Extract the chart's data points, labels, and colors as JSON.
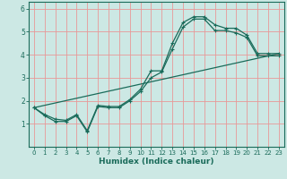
{
  "title": "",
  "xlabel": "Humidex (Indice chaleur)",
  "bg_color": "#cce8e4",
  "grid_color": "#e89898",
  "line_color": "#1a6b5a",
  "xlim": [
    -0.5,
    23.5
  ],
  "ylim": [
    0,
    6.3
  ],
  "xticks": [
    0,
    1,
    2,
    3,
    4,
    5,
    6,
    7,
    8,
    9,
    10,
    11,
    12,
    13,
    14,
    15,
    16,
    17,
    18,
    19,
    20,
    21,
    22,
    23
  ],
  "yticks": [
    1,
    2,
    3,
    4,
    5,
    6
  ],
  "line1_x": [
    0,
    1,
    2,
    3,
    4,
    5,
    6,
    7,
    8,
    9,
    10,
    11,
    12,
    13,
    14,
    15,
    16,
    17,
    18,
    19,
    20,
    21,
    22,
    23
  ],
  "line1_y": [
    1.7,
    1.4,
    1.2,
    1.15,
    1.4,
    0.7,
    1.8,
    1.75,
    1.75,
    2.05,
    2.5,
    3.3,
    3.3,
    4.5,
    5.4,
    5.65,
    5.65,
    5.3,
    5.15,
    5.15,
    4.85,
    4.05,
    4.05,
    4.05
  ],
  "line2_x": [
    0,
    1,
    2,
    3,
    4,
    5,
    6,
    7,
    8,
    9,
    10,
    11,
    12,
    13,
    14,
    15,
    16,
    17,
    18,
    19,
    20,
    21,
    22,
    23
  ],
  "line2_y": [
    1.7,
    1.35,
    1.1,
    1.1,
    1.35,
    0.65,
    1.75,
    1.7,
    1.7,
    2.0,
    2.4,
    3.0,
    3.25,
    4.25,
    5.2,
    5.55,
    5.55,
    5.05,
    5.05,
    4.95,
    4.75,
    3.95,
    3.95,
    3.95
  ],
  "line3_x": [
    0,
    23
  ],
  "line3_y": [
    1.7,
    4.05
  ]
}
